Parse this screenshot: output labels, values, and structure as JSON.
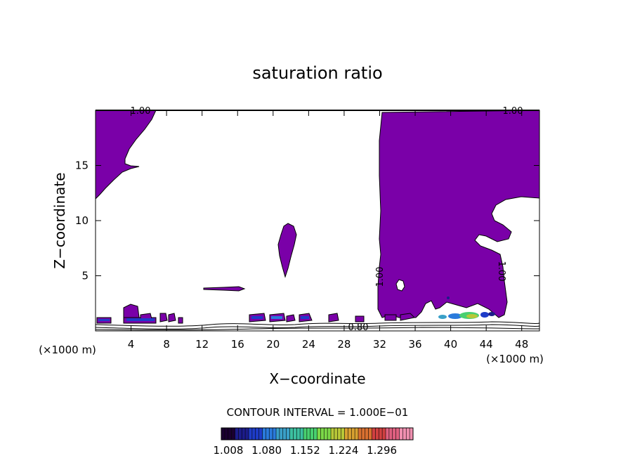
{
  "chart_data": {
    "type": "contour",
    "title": "saturation ratio",
    "xlabel": "X−coordinate",
    "ylabel": "Z−coordinate",
    "x_unit_left": "(×1000 m)",
    "x_unit_right": "(×1000 m)",
    "xlim": [
      0,
      50
    ],
    "ylim": [
      0,
      20
    ],
    "x_ticks": [
      4,
      8,
      12,
      16,
      20,
      24,
      28,
      32,
      36,
      40,
      44,
      48
    ],
    "y_ticks": [
      5,
      10,
      15
    ],
    "contour_labels": [
      "1.00",
      "1.00",
      "1.00",
      "1.00",
      "0.80"
    ],
    "fill_color": "#7a00a8",
    "contour_interval_text": "CONTOUR INTERVAL = 1.000E−01",
    "colorbar_ticks": [
      "1.008",
      "1.080",
      "1.152",
      "1.224",
      "1.296"
    ],
    "colorbar_colors": [
      "#1a0030",
      "#1c1c8a",
      "#1e3cc8",
      "#2a7adc",
      "#3aa0c8",
      "#3cc0a0",
      "#48d070",
      "#7cd848",
      "#b8c838",
      "#d8a030",
      "#d87030",
      "#d04040",
      "#e06080",
      "#f090b0"
    ]
  }
}
